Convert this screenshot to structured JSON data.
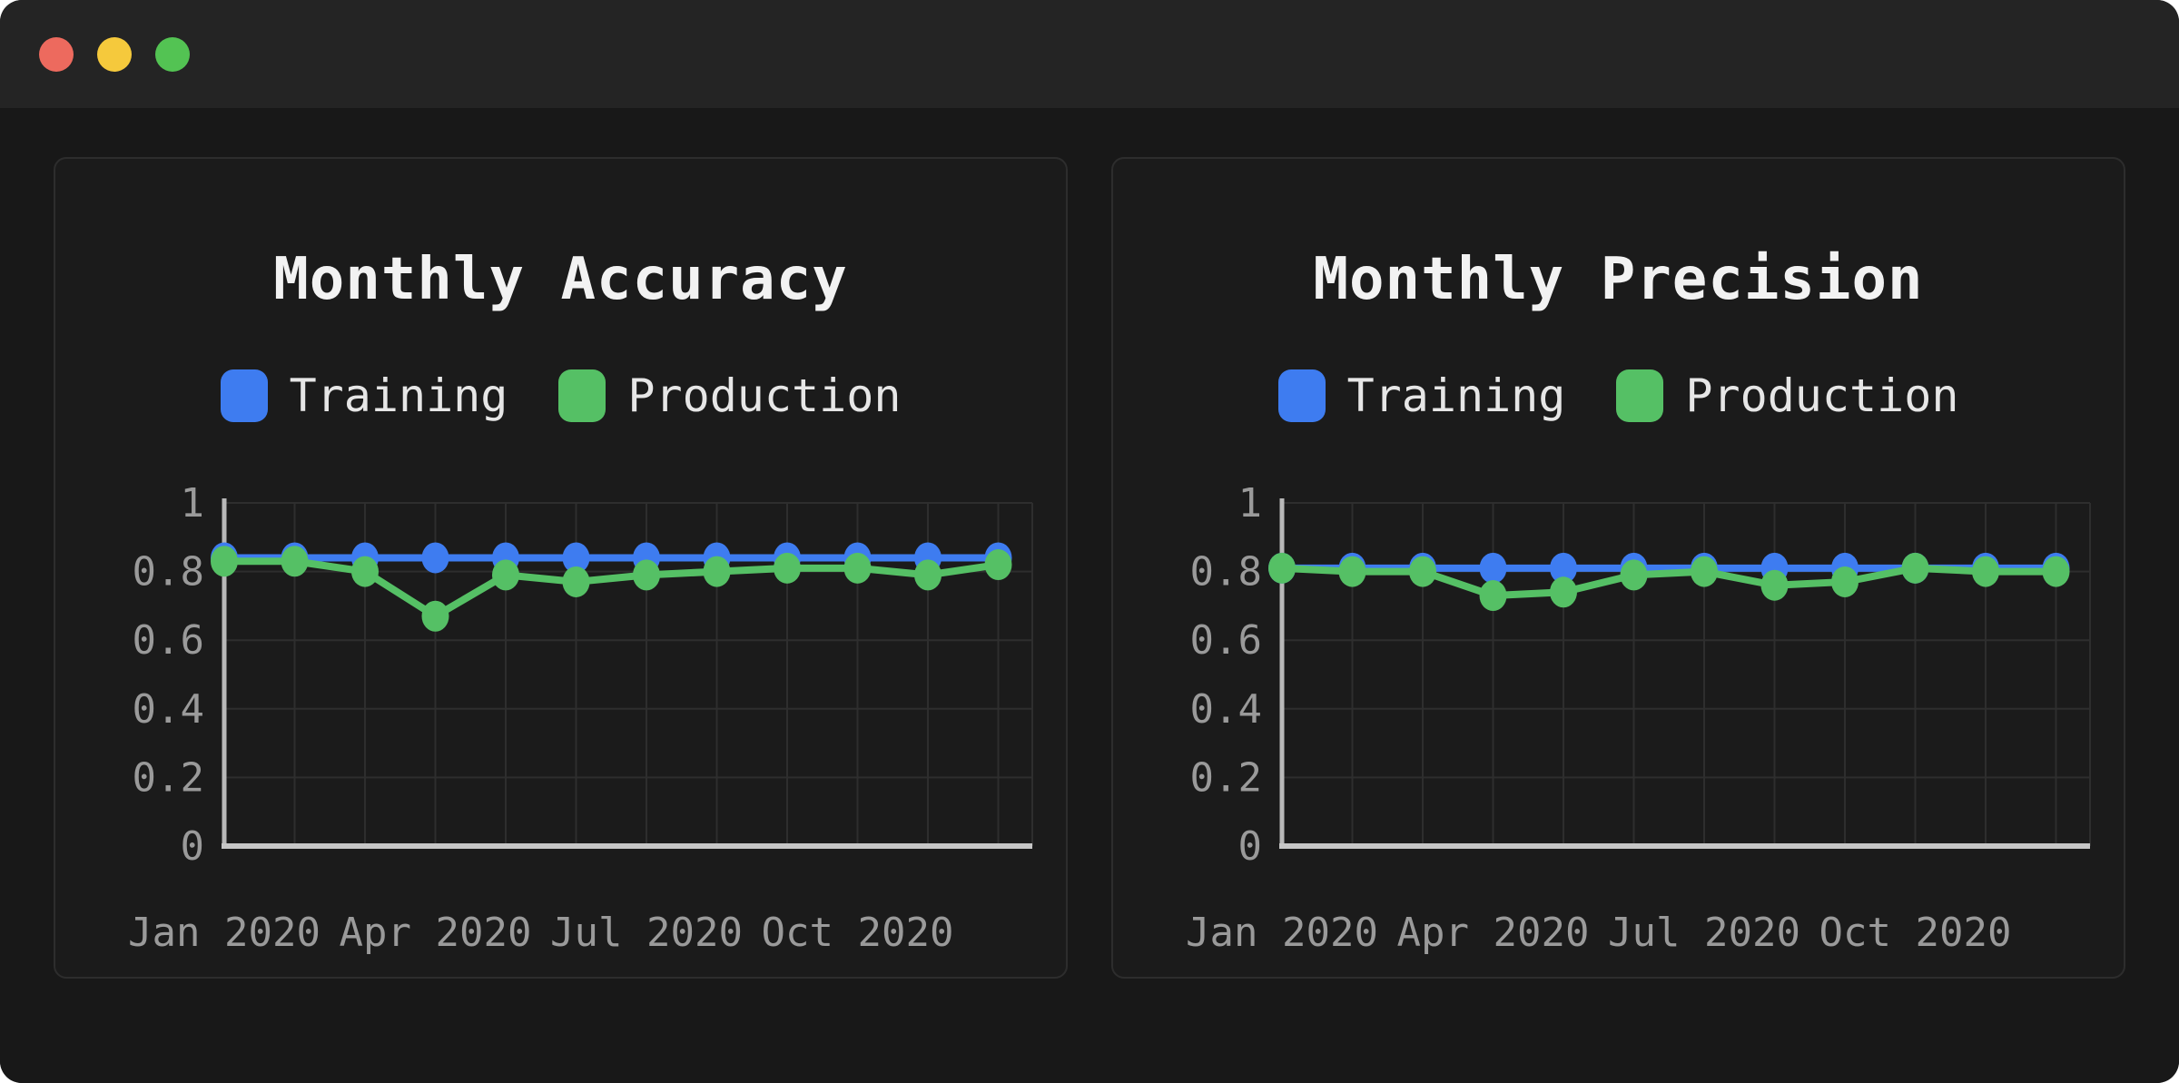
{
  "window": {
    "traffic_lights": [
      {
        "name": "close",
        "color": "#ed6a5e"
      },
      {
        "name": "minimize",
        "color": "#f5c93c"
      },
      {
        "name": "zoom",
        "color": "#53c353"
      }
    ]
  },
  "chart_data": [
    {
      "type": "line",
      "title": "Monthly Accuracy",
      "xlabel": "",
      "ylabel": "",
      "n_points": 12,
      "x_tick_labels": [
        "Jan 2020",
        "Apr 2020",
        "Jul 2020",
        "Oct 2020"
      ],
      "x_tick_month_indices": [
        0,
        3,
        6,
        9
      ],
      "y_tick_labels": [
        "1",
        "0.8",
        "0.6",
        "0.4",
        "0.2",
        "0"
      ],
      "y_tick_values": [
        1,
        0.8,
        0.6,
        0.4,
        0.2,
        0
      ],
      "ylim": [
        0,
        1
      ],
      "grid": true,
      "legend_position": "top",
      "series": [
        {
          "name": "Training",
          "color": "#3e7cf0",
          "values": [
            0.84,
            0.84,
            0.84,
            0.84,
            0.84,
            0.84,
            0.84,
            0.84,
            0.84,
            0.84,
            0.84,
            0.84
          ]
        },
        {
          "name": "Production",
          "color": "#55c065",
          "values": [
            0.83,
            0.83,
            0.8,
            0.67,
            0.79,
            0.77,
            0.79,
            0.8,
            0.81,
            0.81,
            0.79,
            0.82
          ]
        }
      ]
    },
    {
      "type": "line",
      "title": "Monthly Precision",
      "xlabel": "",
      "ylabel": "",
      "n_points": 12,
      "x_tick_labels": [
        "Jan 2020",
        "Apr 2020",
        "Jul 2020",
        "Oct 2020"
      ],
      "x_tick_month_indices": [
        0,
        3,
        6,
        9
      ],
      "y_tick_labels": [
        "1",
        "0.8",
        "0.6",
        "0.4",
        "0.2",
        "0"
      ],
      "y_tick_values": [
        1,
        0.8,
        0.6,
        0.4,
        0.2,
        0
      ],
      "ylim": [
        0,
        1
      ],
      "grid": true,
      "legend_position": "top",
      "series": [
        {
          "name": "Training",
          "color": "#3e7cf0",
          "values": [
            0.81,
            0.81,
            0.81,
            0.81,
            0.81,
            0.81,
            0.81,
            0.81,
            0.81,
            0.81,
            0.81,
            0.81
          ]
        },
        {
          "name": "Production",
          "color": "#55c065",
          "values": [
            0.81,
            0.8,
            0.8,
            0.73,
            0.74,
            0.79,
            0.8,
            0.76,
            0.77,
            0.81,
            0.8,
            0.8
          ]
        }
      ]
    }
  ],
  "style": {
    "grid_color": "#2e2e2e",
    "axis_color": "#b8b8b8",
    "tick_color": "#9a9a9a"
  }
}
